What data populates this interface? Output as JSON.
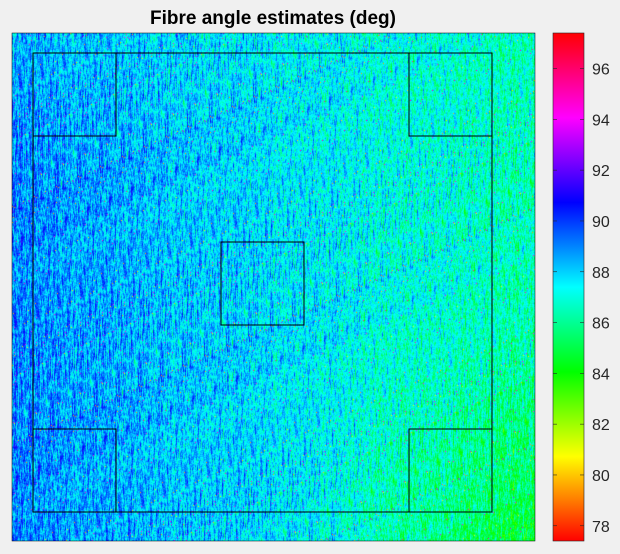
{
  "chart_data": {
    "type": "heatmap",
    "title": "Fibre angle estimates (deg)",
    "xlabel": "",
    "ylabel": "",
    "colormap": "hsv",
    "colorbar": {
      "clim": [
        77.4,
        97.4
      ],
      "ticks": [
        78,
        80,
        82,
        84,
        86,
        88,
        90,
        92,
        94,
        96
      ],
      "tick_labels": [
        "78",
        "80",
        "82",
        "84",
        "86",
        "88",
        "90",
        "92",
        "94",
        "96"
      ]
    },
    "value_range": [
      77.4,
      97.4
    ],
    "dominant_value": 88,
    "field": {
      "left_region_value": 89,
      "right_region_value": 86.5,
      "top_region_value": 87,
      "bottom_right_region_value": 84.5,
      "outliers_high": 93,
      "outliers_low": 81
    },
    "annotations": {
      "outer_rectangle": {
        "description": "region of interest boundary"
      },
      "inner_squares": [
        {
          "name": "top-left"
        },
        {
          "name": "top-right"
        },
        {
          "name": "center"
        },
        {
          "name": "bottom-left"
        },
        {
          "name": "bottom-right"
        }
      ]
    },
    "grid": false,
    "legend": "colorbar-right"
  },
  "colors": {
    "background": "#f0f0f0",
    "frame": "#000000",
    "annotation_stroke": "#000000",
    "text": "#262626"
  }
}
